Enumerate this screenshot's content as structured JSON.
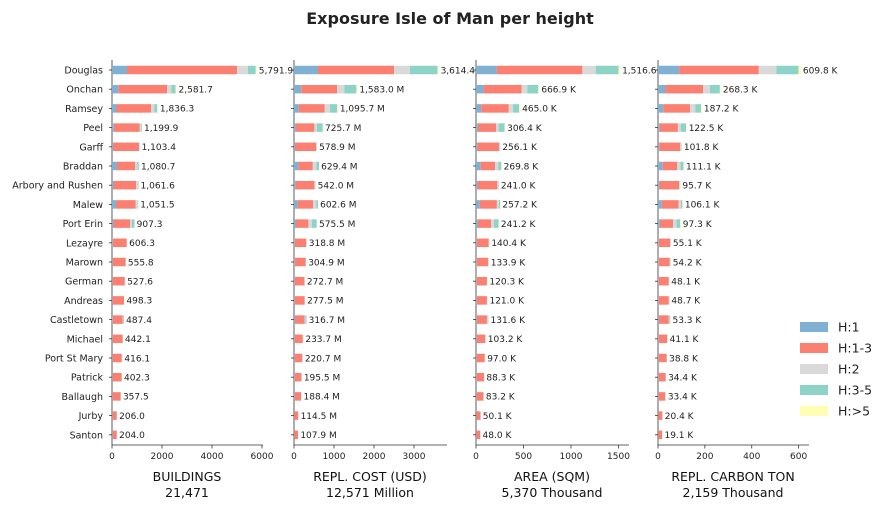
{
  "chart_data": {
    "type": "bar",
    "orientation": "horizontal",
    "stacked": true,
    "title": "Exposure Isle of Man per height",
    "categories": [
      "Douglas",
      "Onchan",
      "Ramsey",
      "Peel",
      "Garff",
      "Braddan",
      "Arbory and Rushen",
      "Malew",
      "Port Erin",
      "Lezayre",
      "Marown",
      "German",
      "Andreas",
      "Castletown",
      "Michael",
      "Port St Mary",
      "Patrick",
      "Ballaugh",
      "Jurby",
      "Santon"
    ],
    "legend": {
      "placement": "right",
      "entries": [
        {
          "name": "H:1",
          "color": "#80b1d3"
        },
        {
          "name": "H:1-3",
          "color": "#fb8072"
        },
        {
          "name": "H:2",
          "color": "#d9d9d9"
        },
        {
          "name": "H:3-5",
          "color": "#8dd3c7"
        },
        {
          "name": "H:>5",
          "color": "#ffffb3"
        }
      ]
    },
    "panels": [
      {
        "key": "buildings",
        "xlabel": "BUILDINGS",
        "total": "21,471",
        "xlim": [
          0,
          6000
        ],
        "xticks": [
          0,
          2000,
          4000,
          6000
        ],
        "labels": [
          "5,791.9",
          "2,581.7",
          "1,836.3",
          "1,199.9",
          "1,103.4",
          "1,080.7",
          "1,061.6",
          "1,051.5",
          "907.3",
          "606.3",
          "555.8",
          "527.6",
          "498.3",
          "487.4",
          "442.1",
          "416.1",
          "402.3",
          "357.5",
          "206.0",
          "204.0"
        ],
        "totals": [
          5791.9,
          2581.7,
          1836.3,
          1199.9,
          1103.4,
          1080.7,
          1061.6,
          1051.5,
          907.3,
          606.3,
          555.8,
          527.6,
          498.3,
          487.4,
          442.1,
          416.1,
          402.3,
          357.5,
          206.0,
          204.0
        ],
        "series": [
          {
            "name": "H:1",
            "values": [
              600,
              250,
              180,
              70,
              40,
              200,
              60,
              160,
              60,
              30,
              20,
              20,
              20,
              30,
              20,
              20,
              20,
              20,
              20,
              20
            ]
          },
          {
            "name": "H:1-3",
            "values": [
              4400,
              1950,
              1380,
              1030,
              1040,
              730,
              900,
              780,
              670,
              560,
              520,
              490,
              460,
              400,
              400,
              370,
              360,
              320,
              170,
              170
            ]
          },
          {
            "name": "H:2",
            "values": [
              440,
              180,
              130,
              50,
              15,
              90,
              80,
              90,
              60,
              10,
              10,
              10,
              10,
              30,
              15,
              20,
              15,
              12,
              10,
              10
            ]
          },
          {
            "name": "H:3-5",
            "values": [
              310,
              160,
              120,
              45,
              5,
              55,
              20,
              20,
              110,
              5,
              5,
              5,
              5,
              25,
              5,
              5,
              5,
              5,
              5,
              3
            ]
          },
          {
            "name": "H:>5",
            "values": [
              42,
              42,
              26,
              5,
              3,
              6,
              2,
              2,
              7,
              1,
              1,
              3,
              3,
              2,
              2,
              1,
              2,
              1,
              1,
              1
            ]
          }
        ]
      },
      {
        "key": "cost",
        "xlabel": "REPL. COST (USD)",
        "total": "12,571 Million",
        "xlim": [
          0,
          3800
        ],
        "xticks": [
          0,
          1000,
          2000,
          3000
        ],
        "labels": [
          "3,614.4",
          "1,583.0 M",
          "1,095.7 M",
          "725.7 M",
          "578.9 M",
          "629.4 M",
          "542.0 M",
          "602.6 M",
          "575.5 M",
          "318.8 M",
          "304.9 M",
          "272.7 M",
          "277.5 M",
          "316.7 M",
          "233.7 M",
          "220.7 M",
          "195.5 M",
          "188.4 M",
          "114.5 M",
          "107.9 M"
        ],
        "totals": [
          3614.4,
          1583.0,
          1095.7,
          725.7,
          578.9,
          629.4,
          542.0,
          602.6,
          575.5,
          318.8,
          304.9,
          272.7,
          277.5,
          316.7,
          233.7,
          220.7,
          195.5,
          188.4,
          114.5,
          107.9
        ],
        "series": [
          {
            "name": "H:1",
            "values": [
              600,
              180,
              120,
              40,
              25,
              110,
              40,
              90,
              50,
              20,
              20,
              15,
              15,
              25,
              15,
              15,
              15,
              15,
              10,
              10
            ]
          },
          {
            "name": "H:1-3",
            "values": [
              1900,
              900,
              650,
              470,
              530,
              360,
              470,
              390,
              310,
              285,
              270,
              245,
              250,
              240,
              205,
              190,
              170,
              160,
              95,
              90
            ]
          },
          {
            "name": "H:2",
            "values": [
              400,
              180,
              130,
              60,
              15,
              90,
              25,
              80,
              90,
              8,
              8,
              8,
              8,
              25,
              8,
              10,
              6,
              8,
              6,
              5
            ]
          },
          {
            "name": "H:3-5",
            "values": [
              690,
              300,
              180,
              150,
              7,
              65,
              6,
              40,
              120,
              5,
              6,
              4,
              4,
              25,
              5,
              5,
              4,
              5,
              3,
              2
            ]
          },
          {
            "name": "H:>5",
            "values": [
              24.4,
              23,
              15.7,
              5.7,
              1.9,
              4.4,
              1,
              2.6,
              5.5,
              0.8,
              0.9,
              0.7,
              0.5,
              1.7,
              0.7,
              0.7,
              0.5,
              0.4,
              0.5,
              0.9
            ]
          }
        ]
      },
      {
        "key": "area",
        "xlabel": "AREA (SQM)",
        "total": "5,370 Thousand",
        "xlim": [
          0,
          1600
        ],
        "xticks": [
          0,
          500,
          1000,
          1500
        ],
        "labels": [
          "1,516.6",
          "666.9 K",
          "465.0 K",
          "306.4 K",
          "256.1 K",
          "269.8 K",
          "241.0 K",
          "257.2 K",
          "241.2 K",
          "140.4 K",
          "133.9 K",
          "120.3 K",
          "121.0 K",
          "131.6 K",
          "103.2 K",
          "97.0 K",
          "88.3 K",
          "83.2 K",
          "50.1 K",
          "48.0 K"
        ],
        "totals": [
          1516.6,
          666.9,
          465.0,
          306.4,
          256.1,
          269.8,
          241.0,
          257.2,
          241.2,
          140.4,
          133.9,
          120.3,
          121.0,
          131.6,
          103.2,
          97.0,
          88.3,
          83.2,
          50.1,
          48.0
        ],
        "series": [
          {
            "name": "H:1",
            "values": [
              220,
              80,
              55,
              18,
              12,
              50,
              15,
              40,
              20,
              9,
              8,
              7,
              7,
              10,
              6,
              6,
              6,
              6,
              4,
              4
            ]
          },
          {
            "name": "H:1-3",
            "values": [
              900,
              400,
              290,
              195,
              230,
              150,
              210,
              180,
              140,
              125,
              118,
              108,
              108,
              105,
              92,
              86,
              78,
              72,
              43,
              41
            ]
          },
          {
            "name": "H:2",
            "values": [
              140,
              60,
              45,
              25,
              8,
              35,
              10,
              20,
              30,
              3,
              4,
              3,
              3,
              8,
              3,
              3,
              2,
              3,
              2,
              2
            ]
          },
          {
            "name": "H:3-5",
            "values": [
              240,
              115,
              65,
              63,
              5,
              32,
              5,
              15,
              48,
              2.5,
              3,
              1.5,
              2,
              7.5,
              1.5,
              1.5,
              1.5,
              1.5,
              0.8,
              0.8
            ]
          },
          {
            "name": "H:>5",
            "values": [
              16.6,
              11.9,
              10,
              5.4,
              1.1,
              2.8,
              1,
              2.2,
              3.2,
              0.9,
              0.9,
              0.8,
              1,
              1.1,
              0.7,
              0.5,
              0.8,
              0.7,
              0.3,
              0.2
            ]
          }
        ]
      },
      {
        "key": "carbon",
        "xlabel": "REPL. CARBON TON",
        "total": "2,159 Thousand",
        "xlim": [
          0,
          640
        ],
        "xticks": [
          0,
          200,
          400,
          600
        ],
        "labels": [
          "609.8 K",
          "268.3 K",
          "187.2 K",
          "122.5 K",
          "101.8 K",
          "111.1 K",
          "95.7 K",
          "106.1 K",
          "97.3 K",
          "55.1 K",
          "54.2 K",
          "48.1 K",
          "48.7 K",
          "53.3 K",
          "41.1 K",
          "38.8 K",
          "34.4 K",
          "33.4 K",
          "20.4 K",
          "19.1 K"
        ],
        "totals": [
          609.8,
          268.3,
          187.2,
          122.5,
          101.8,
          111.1,
          95.7,
          106.1,
          97.3,
          55.1,
          54.2,
          48.1,
          48.7,
          53.3,
          41.1,
          38.8,
          34.4,
          33.4,
          20.4,
          19.1
        ],
        "series": [
          {
            "name": "H:1",
            "values": [
              90,
              32,
              22,
              7,
              5,
              20,
              6,
              16,
              8,
              3.5,
              3,
              3,
              3,
              4,
              2.5,
              2.5,
              2.5,
              2.5,
              1.5,
              1.5
            ]
          },
          {
            "name": "H:1-3",
            "values": [
              340,
              160,
              115,
              78,
              90,
              62,
              84,
              72,
              56,
              49,
              47,
              43,
              43,
              42,
              36,
              34,
              30,
              28,
              17,
              16
            ]
          },
          {
            "name": "H:2",
            "values": [
              75,
              30,
              22,
              12,
              4,
              14,
              3,
              10,
              14,
              1.2,
              2,
              1,
              1,
              3,
              1.5,
              1.3,
              1,
              1.4,
              1,
              1
            ]
          },
          {
            "name": "H:3-5",
            "values": [
              95,
              42,
              25,
              23,
              2,
              13,
              2,
              6,
              17,
              1,
              1.8,
              0.8,
              1.4,
              3.6,
              0.8,
              0.7,
              0.7,
              1.2,
              0.6,
              0.4
            ]
          },
          {
            "name": "H:>5",
            "values": [
              9.8,
              4.3,
              3.2,
              2.5,
              0.8,
              2.1,
              0.7,
              2.1,
              2.3,
              0.4,
              0.4,
              0.3,
              0.3,
              0.7,
              0.3,
              0.3,
              0.2,
              0.3,
              0.3,
              0.2
            ]
          }
        ]
      }
    ]
  }
}
